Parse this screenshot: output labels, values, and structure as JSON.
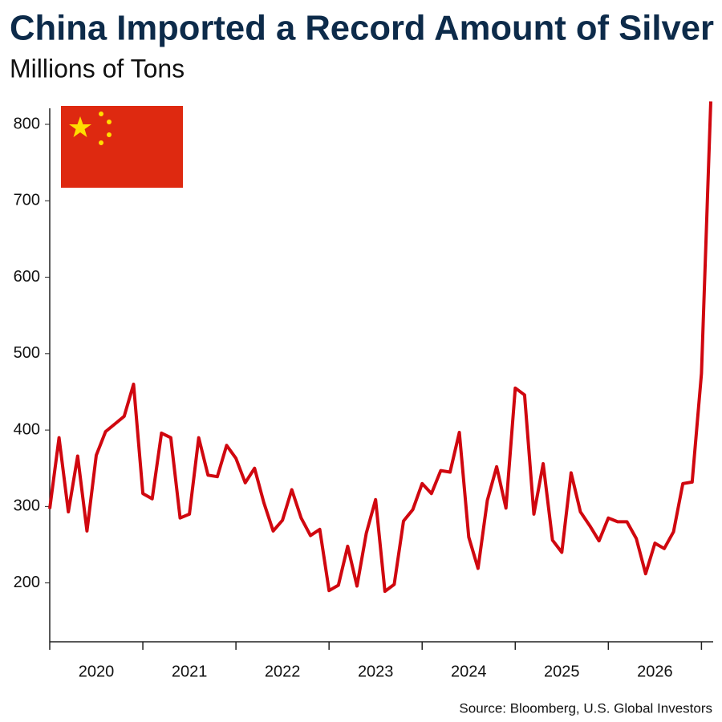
{
  "chart_data": {
    "type": "line",
    "title": "China Imported a Record Amount of Silver",
    "subtitle": "Millions of Tons",
    "source": "Source: Bloomberg, U.S. Global Investors",
    "categories": [
      null,
      null,
      null,
      null,
      null,
      "2020",
      null,
      null,
      null,
      null,
      null,
      null,
      null,
      null,
      null,
      "2021",
      null,
      null,
      null,
      null,
      null,
      null,
      null,
      null,
      null,
      "2022",
      null,
      null,
      null,
      null,
      null,
      null,
      null,
      null,
      null,
      "2023",
      null,
      null,
      null,
      null,
      null,
      null,
      null,
      null,
      null,
      "2024",
      null,
      null,
      null,
      null,
      null,
      null,
      null,
      null,
      null,
      "2025",
      null,
      null,
      null,
      null,
      null,
      null,
      null,
      null,
      null,
      "2026",
      null,
      null,
      null,
      null,
      null,
      null
    ],
    "series": [
      {
        "color": "#d0070f",
        "values": [
          297,
          390,
          293,
          366,
          268,
          367,
          398,
          408,
          418,
          460,
          317,
          310,
          396,
          390,
          285,
          290,
          390,
          341,
          339,
          380,
          363,
          331,
          350,
          305,
          268,
          282,
          322,
          285,
          262,
          270,
          190,
          197,
          248,
          196,
          265,
          309,
          189,
          198,
          281,
          296,
          330,
          317,
          347,
          345,
          397,
          260,
          219,
          308,
          352,
          298,
          455,
          446,
          290,
          356,
          256,
          240,
          344,
          293,
          275,
          255,
          285,
          280,
          280,
          258,
          212,
          252,
          245,
          267,
          330,
          332,
          474,
          830
        ]
      }
    ],
    "ylim": [
      123,
      821
    ],
    "yticks": [
      200,
      300,
      400,
      500,
      600,
      700,
      800
    ],
    "grid": false
  }
}
